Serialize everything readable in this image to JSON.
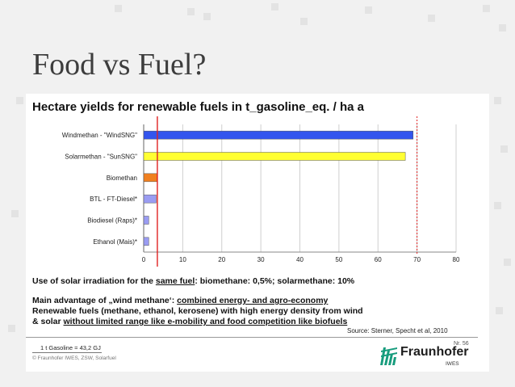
{
  "slide": {
    "title": "Food vs Fuel?"
  },
  "colors": {
    "background": "#f1f1f1",
    "grid": "#cfcfcf",
    "marker_line": "#e02020",
    "target_line": "#e02020"
  },
  "chart_data": {
    "type": "bar",
    "orientation": "horizontal",
    "title": "Hectare yields for renewable fuels in t_gasoline_eq. / ha a",
    "categories": [
      "Windmethan - \"WindSNG\"",
      "Solarmethan - \"SunSNG\"",
      "Biomethan",
      "BTL - FT-Diesel*",
      "Biodiesel (Raps)*",
      "Ethanol (Mais)*"
    ],
    "values": [
      69,
      67,
      3.5,
      3.2,
      1.3,
      1.3
    ],
    "bar_colors": [
      "#3355ee",
      "#ffff33",
      "#f08020",
      "#9a9cf2",
      "#9a9cf2",
      "#9a9cf2"
    ],
    "xlim": [
      0,
      80
    ],
    "xticks": [
      0,
      10,
      20,
      30,
      40,
      50,
      60,
      70,
      80
    ],
    "vertical_lines": [
      {
        "value": 3.5,
        "style": "solid",
        "color": "#e02020"
      },
      {
        "value": 70,
        "style": "dotted",
        "color": "#e02020"
      }
    ],
    "grid": "vertical"
  },
  "notes": {
    "line1_pre": "Use of solar irradiation for the ",
    "line1_u": "same fuel",
    "line1_post": ": biomethane: 0,5%; solarmethane: 10%",
    "line2_pre": "Main advantage of „wind methane‘: ",
    "line2_u": "combined energy- and agro-economy",
    "line3": "Renewable fuels (methane, ethanol, kerosene) with high energy density from wind",
    "line4_pre": "& solar ",
    "line4_u": "without limited range like e-mobility and food competition like biofuels"
  },
  "footer": {
    "source": "Source: Sterner, Specht et al, 2010",
    "slide_number": "Nr. 56",
    "conversion": "1 t Gasoline = 43,2 GJ",
    "copyright": "© Fraunhofer IWES, ZSW, Solarfuel",
    "logo_name": "Fraunhofer",
    "logo_sub": "IWES"
  }
}
